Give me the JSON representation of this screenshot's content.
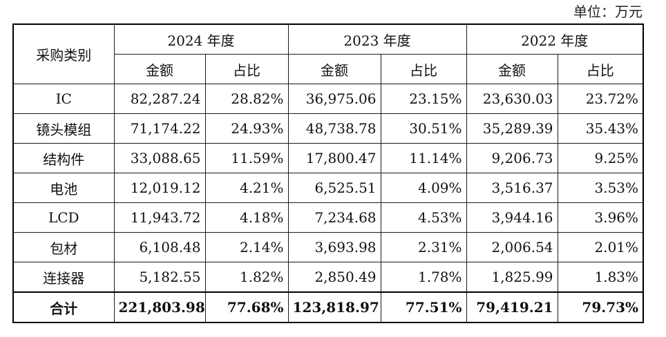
{
  "unit_note": "单位：万元",
  "table": {
    "category_header": "采购类别",
    "years": [
      {
        "label": "2024 年度",
        "amount_label": "金额",
        "share_label": "占比"
      },
      {
        "label": "2023 年度",
        "amount_label": "金额",
        "share_label": "占比"
      },
      {
        "label": "2022 年度",
        "amount_label": "金额",
        "share_label": "占比"
      }
    ],
    "rows": [
      {
        "category": "IC",
        "cells": [
          "82,287.24",
          "28.82%",
          "36,975.06",
          "23.15%",
          "23,630.03",
          "23.72%"
        ]
      },
      {
        "category": "镜头模组",
        "cells": [
          "71,174.22",
          "24.93%",
          "48,738.78",
          "30.51%",
          "35,289.39",
          "35.43%"
        ]
      },
      {
        "category": "结构件",
        "cells": [
          "33,088.65",
          "11.59%",
          "17,800.47",
          "11.14%",
          "9,206.73",
          "9.25%"
        ]
      },
      {
        "category": "电池",
        "cells": [
          "12,019.12",
          "4.21%",
          "6,525.51",
          "4.09%",
          "3,516.37",
          "3.53%"
        ]
      },
      {
        "category": "LCD",
        "cells": [
          "11,943.72",
          "4.18%",
          "7,234.68",
          "4.53%",
          "3,944.16",
          "3.96%"
        ]
      },
      {
        "category": "包材",
        "cells": [
          "6,108.48",
          "2.14%",
          "3,693.98",
          "2.31%",
          "2,006.54",
          "2.01%"
        ]
      },
      {
        "category": "连接器",
        "cells": [
          "5,182.55",
          "1.82%",
          "2,850.49",
          "1.78%",
          "1,825.99",
          "1.83%"
        ]
      }
    ],
    "total": {
      "category": "合计",
      "cells": [
        "221,803.98",
        "77.68%",
        "123,818.97",
        "77.51%",
        "79,419.21",
        "79.73%"
      ]
    }
  }
}
